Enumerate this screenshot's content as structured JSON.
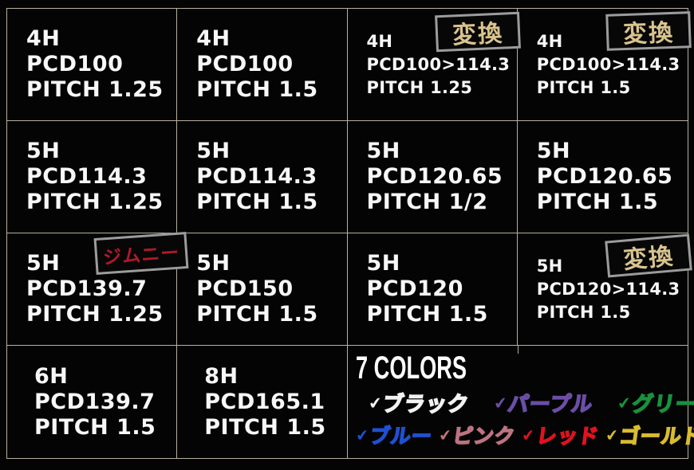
{
  "theme": {
    "background": "#040404",
    "grid_line": "#b7b09e",
    "badge_border": "#9c9c9c",
    "badge_bg": "#070707",
    "cell_text": "#f7f7f7"
  },
  "table": {
    "cells": [
      {
        "lines": [
          "4H",
          "PCD100",
          "PITCH 1.25"
        ]
      },
      {
        "lines": [
          "4H",
          "PCD100",
          "PITCH 1.5"
        ]
      },
      {
        "lines": [
          "4H",
          "PCD100>114.3",
          "PITCH 1.25"
        ],
        "badge": {
          "label": "変換",
          "color": "#d9c48e"
        }
      },
      {
        "lines": [
          "4H",
          "PCD100>114.3",
          "PITCH 1.5"
        ],
        "badge": {
          "label": "変換",
          "color": "#d9c48e"
        }
      },
      {
        "lines": [
          "5H",
          "PCD114.3",
          "PITCH 1.25"
        ]
      },
      {
        "lines": [
          "5H",
          "PCD114.3",
          "PITCH 1.5"
        ]
      },
      {
        "lines": [
          "5H",
          "PCD120.65",
          "PITCH 1/2"
        ]
      },
      {
        "lines": [
          "5H",
          "PCD120.65",
          "PITCH 1.5"
        ]
      },
      {
        "lines": [
          "5H",
          "PCD139.7",
          "PITCH 1.25"
        ],
        "badge": {
          "label": "ジムニー",
          "color": "#b2182c"
        }
      },
      {
        "lines": [
          "5H",
          "PCD150",
          "PITCH 1.5"
        ]
      },
      {
        "lines": [
          "5H",
          "PCD120",
          "PITCH 1.5"
        ]
      },
      {
        "lines": [
          "5H",
          "PCD120>114.3",
          "PITCH 1.5"
        ],
        "badge": {
          "label": "変換",
          "color": "#d9c48e"
        }
      },
      {
        "lines": [
          "6H",
          "PCD139.7",
          "PITCH 1.5"
        ]
      },
      {
        "lines": [
          "8H",
          "PCD165.1",
          "PITCH 1.5"
        ]
      }
    ]
  },
  "colors_section": {
    "title": "7 COLORS",
    "check_glyph": "✔",
    "row1": [
      {
        "label": "ブラック",
        "color": "#f2f2f2"
      },
      {
        "label": "パープル",
        "color": "#6b4ea6"
      },
      {
        "label": "グリーン",
        "color": "#17923e"
      }
    ],
    "row2": [
      {
        "label": "ブルー",
        "color": "#1e50d2"
      },
      {
        "label": "ピンク",
        "color": "#bd7382"
      },
      {
        "label": "レッド",
        "color": "#e0121e"
      },
      {
        "label": "ゴールド",
        "color": "#d9bc2e"
      }
    ]
  }
}
